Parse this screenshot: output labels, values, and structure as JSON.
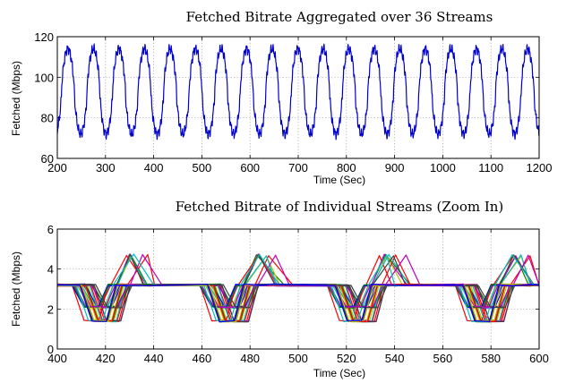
{
  "chart_data": [
    {
      "type": "line",
      "title": "Fetched Bitrate Aggregated over 36 Streams",
      "xlabel": "Time (Sec)",
      "ylabel": "Fetched (Mbps)",
      "xlim": [
        200,
        1200
      ],
      "ylim": [
        60,
        120
      ],
      "xticks": [
        200,
        300,
        400,
        500,
        600,
        700,
        800,
        900,
        1000,
        1100,
        1200
      ],
      "yticks": [
        60,
        80,
        100,
        120
      ],
      "grid": true,
      "series_color": "#0000cc",
      "period_sec": 53,
      "first_peak_sec": 222,
      "peak_mbps": 114,
      "trough_mbps": 72,
      "start_mbps": 73
    },
    {
      "type": "line",
      "title": "Fetched Bitrate of Individual Streams (Zoom In)",
      "xlabel": "Time (Sec)",
      "ylabel": "Fetched (Mbps)",
      "xlim": [
        400,
        600
      ],
      "ylim": [
        0,
        6
      ],
      "xticks": [
        400,
        420,
        440,
        460,
        480,
        500,
        520,
        540,
        560,
        580,
        600
      ],
      "yticks": [
        0,
        2,
        4,
        6
      ],
      "grid": true,
      "bitrate_levels": [
        1.4,
        2.1,
        3.2,
        4.7
      ],
      "stream_count": 36,
      "colors": [
        "#0000ff",
        "#008000",
        "#ff0000",
        "#00bfbf",
        "#bf00bf",
        "#bfbf00",
        "#404040"
      ]
    }
  ]
}
